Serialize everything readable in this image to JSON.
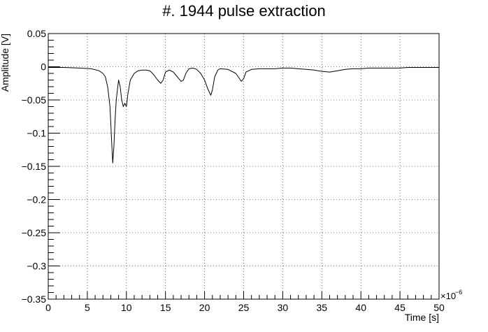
{
  "chart_data": {
    "type": "line",
    "title": "#. 1944 pulse extraction",
    "xlabel": "Time [s]",
    "ylabel": "Amplitude [V]",
    "x_multiplier_label": "×10",
    "x_multiplier_exponent": "−6",
    "xlim": [
      0,
      50
    ],
    "ylim": [
      -0.35,
      0.05
    ],
    "x_unit_scale": 1e-06,
    "grid": true,
    "legend": "none",
    "x_ticks": [
      0,
      5,
      10,
      15,
      20,
      25,
      30,
      35,
      40,
      45,
      50
    ],
    "x_tick_labels": [
      "0",
      "5",
      "10",
      "15",
      "20",
      "25",
      "30",
      "35",
      "40",
      "45",
      "50"
    ],
    "y_ticks": [
      0.05,
      0,
      -0.05,
      -0.1,
      -0.15,
      -0.2,
      -0.25,
      -0.3,
      -0.35
    ],
    "y_tick_labels": [
      "0.05",
      "0",
      "−0.05",
      "−0.1",
      "−0.15",
      "−0.2",
      "−0.25",
      "−0.3",
      "−0.35"
    ],
    "series": [
      {
        "color": "#000000",
        "x": [
          0,
          2,
          4,
          5.5,
          6.5,
          7.0,
          7.3,
          7.6,
          7.9,
          8.1,
          8.25,
          8.4,
          8.55,
          8.7,
          8.85,
          9.0,
          9.2,
          9.4,
          9.6,
          9.8,
          10.0,
          10.2,
          10.5,
          11.0,
          11.5,
          12.0,
          12.5,
          13.0,
          13.5,
          14.0,
          14.4,
          14.7,
          15.0,
          15.5,
          16.0,
          16.5,
          17.0,
          17.3,
          17.6,
          18.0,
          18.5,
          19.0,
          19.5,
          20.0,
          20.4,
          20.8,
          21.0,
          21.3,
          21.7,
          22.0,
          23.0,
          24.0,
          24.7,
          25.0,
          25.3,
          26.0,
          27.0,
          28.0,
          29.0,
          30.0,
          31.0,
          32.0,
          33.0,
          34.0,
          35.0,
          36.0,
          37.0,
          38.0,
          39.0,
          40.0,
          41.0,
          42.0,
          43.0,
          44.0,
          45.0,
          46.0,
          47.0,
          48.0,
          49.0,
          50.0
        ],
        "y": [
          -0.001,
          -0.001,
          -0.002,
          -0.003,
          -0.006,
          -0.01,
          -0.015,
          -0.03,
          -0.06,
          -0.11,
          -0.145,
          -0.12,
          -0.08,
          -0.05,
          -0.035,
          -0.02,
          -0.03,
          -0.05,
          -0.06,
          -0.055,
          -0.06,
          -0.04,
          -0.02,
          -0.01,
          -0.006,
          -0.005,
          -0.005,
          -0.006,
          -0.012,
          -0.02,
          -0.025,
          -0.02,
          -0.008,
          -0.005,
          -0.008,
          -0.015,
          -0.022,
          -0.02,
          -0.01,
          -0.003,
          -0.002,
          -0.004,
          -0.01,
          -0.02,
          -0.033,
          -0.043,
          -0.035,
          -0.015,
          -0.005,
          -0.003,
          -0.004,
          -0.01,
          -0.022,
          -0.018,
          -0.008,
          -0.004,
          -0.003,
          -0.003,
          -0.003,
          -0.002,
          -0.002,
          -0.003,
          -0.004,
          -0.005,
          -0.007,
          -0.008,
          -0.006,
          -0.004,
          -0.003,
          -0.003,
          -0.002,
          -0.002,
          -0.002,
          -0.002,
          -0.002,
          -0.001,
          -0.001,
          -0.001,
          -0.001,
          -0.001
        ]
      }
    ]
  }
}
